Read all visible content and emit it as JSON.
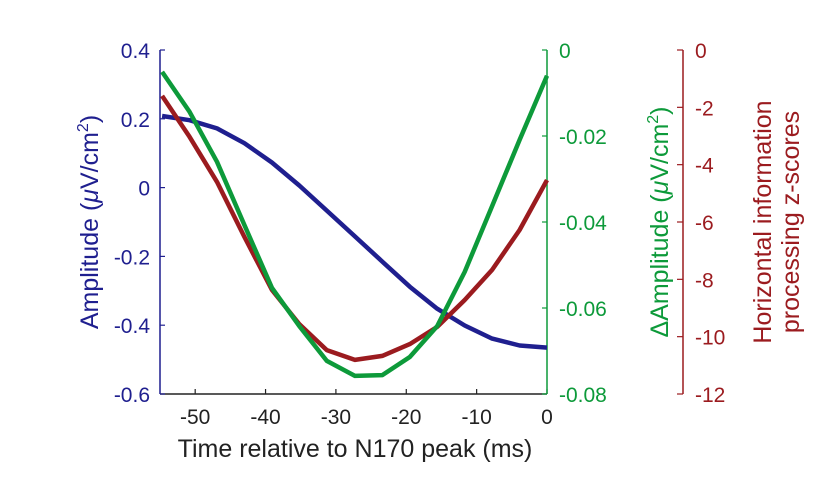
{
  "chart_data": {
    "type": "line",
    "title": "",
    "xlabel": "Time relative to N170 peak (ms)",
    "xlim": [
      -55,
      0
    ],
    "xticks": [
      -50,
      -40,
      -30,
      -20,
      -10,
      0
    ],
    "xtick_labels": [
      "-50",
      "-40",
      "-30",
      "-20",
      "-10",
      "0"
    ],
    "grid": false,
    "legend": "none",
    "colors": {
      "amplitude": "#1f1f8f",
      "delta_amplitude": "#0d9a3a",
      "z_scores": "#9b1b1f",
      "x_axis": "#222222"
    },
    "axes": [
      {
        "id": "left",
        "label_prefix": "Amplitude (",
        "label_mu": "μ",
        "label_unit": "V/cm",
        "label_sup": "2",
        "label_suffix": ")",
        "ylim": [
          -0.6,
          0.4
        ],
        "ticks": [
          0.4,
          0.2,
          0,
          -0.2,
          -0.4,
          -0.6
        ],
        "tick_labels": [
          "0.4",
          "0.2",
          "0",
          "-0.2",
          "-0.4",
          "-0.6"
        ]
      },
      {
        "id": "right1",
        "label_prefix": "ΔAmplitude (",
        "label_mu": "μ",
        "label_unit": "V/cm",
        "label_sup": "2",
        "label_suffix": ")",
        "ylim": [
          -0.08,
          0
        ],
        "ticks": [
          0,
          -0.02,
          -0.04,
          -0.06,
          -0.08
        ],
        "tick_labels": [
          "0",
          "-0.02",
          "-0.04",
          "-0.06",
          "-0.08"
        ]
      },
      {
        "id": "right2",
        "label_line1": "Horizontal information",
        "label_line2": "processing z-scores",
        "ylim": [
          -12,
          0
        ],
        "ticks": [
          0,
          -2,
          -4,
          -6,
          -8,
          -10,
          -12
        ],
        "tick_labels": [
          "0",
          "-2",
          "-4",
          "-6",
          "-8",
          "-10",
          "-12"
        ]
      }
    ],
    "x": [
      -54.7,
      -50.8,
      -46.9,
      -43.0,
      -39.1,
      -35.2,
      -31.3,
      -27.3,
      -23.4,
      -19.5,
      -15.6,
      -11.7,
      -7.8,
      -3.9,
      0
    ],
    "series": [
      {
        "name": "Amplitude",
        "axis": "left",
        "values": [
          0.208,
          0.196,
          0.172,
          0.129,
          0.073,
          0.006,
          -0.067,
          -0.142,
          -0.215,
          -0.288,
          -0.352,
          -0.401,
          -0.439,
          -0.459,
          -0.465
        ]
      },
      {
        "name": "ΔAmplitude",
        "axis": "right1",
        "values": [
          -0.0051,
          -0.0144,
          -0.026,
          -0.0407,
          -0.0553,
          -0.0642,
          -0.0723,
          -0.0758,
          -0.0756,
          -0.0714,
          -0.0642,
          -0.0516,
          -0.0363,
          -0.0209,
          -0.006
        ]
      },
      {
        "name": "Horizontal information processing z-scores",
        "axis": "right2",
        "values": [
          -1.6,
          -3.03,
          -4.6,
          -6.52,
          -8.37,
          -9.56,
          -10.47,
          -10.81,
          -10.67,
          -10.26,
          -9.66,
          -8.72,
          -7.67,
          -6.28,
          -4.54
        ]
      }
    ]
  }
}
